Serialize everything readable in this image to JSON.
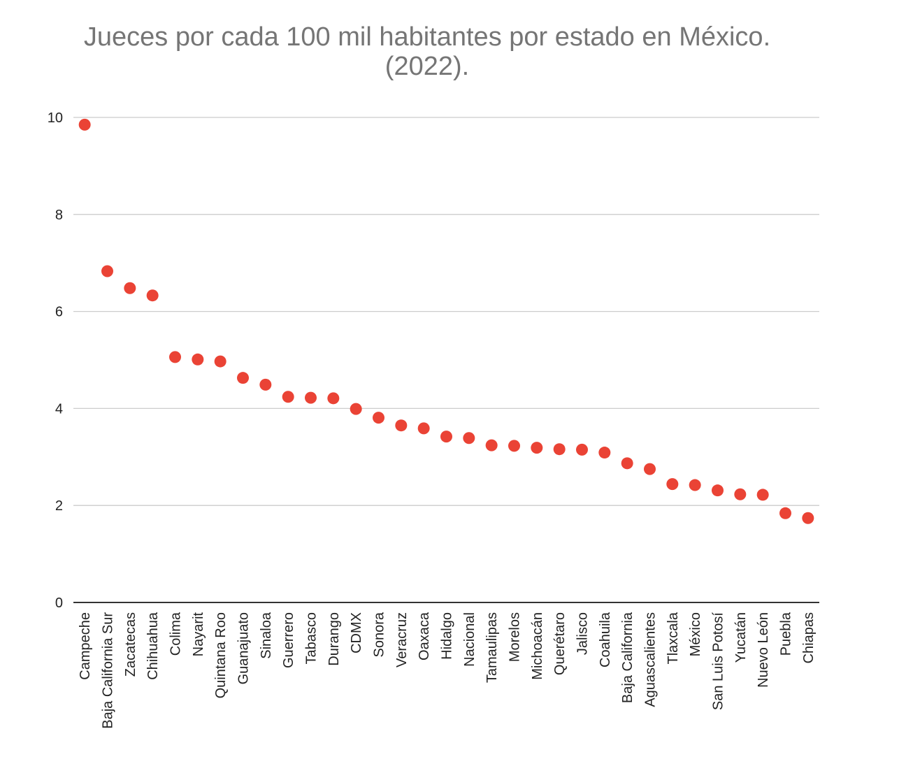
{
  "chart_data": {
    "type": "scatter",
    "title": "Jueces por cada 100 mil habitantes por estado en México.\n(2022).",
    "xlabel": "",
    "ylabel": "",
    "ylim": [
      0,
      10
    ],
    "yticks": [
      "0",
      "2",
      "4",
      "6",
      "8",
      "10"
    ],
    "grid": true,
    "legend": "none",
    "point_color": "#ea4335",
    "categories": [
      "Campeche",
      "Baja California Sur",
      "Zacatecas",
      "Chihuahua",
      "Colima",
      "Nayarit",
      "Quintana Roo",
      "Guanajuato",
      "Sinaloa",
      "Guerrero",
      "Tabasco",
      "Durango",
      "CDMX",
      "Sonora",
      "Veracruz",
      "Oaxaca",
      "Hidalgo",
      "Nacional",
      "Tamaulipas",
      "Morelos",
      "Michoacán",
      "Querétaro",
      "Jalisco",
      "Coahuila",
      "Baja California",
      "Aguascalientes",
      "Tlaxcala",
      "México",
      "San Luis Potosí",
      "Yucatán",
      "Nuevo León",
      "Puebla",
      "Chiapas"
    ],
    "values": [
      9.85,
      6.83,
      6.48,
      6.33,
      5.06,
      5.01,
      4.97,
      4.63,
      4.49,
      4.24,
      4.22,
      4.21,
      3.99,
      3.81,
      3.65,
      3.59,
      3.42,
      3.39,
      3.24,
      3.23,
      3.19,
      3.16,
      3.15,
      3.09,
      2.87,
      2.75,
      2.44,
      2.42,
      2.31,
      2.23,
      2.22,
      1.84,
      1.74
    ]
  }
}
